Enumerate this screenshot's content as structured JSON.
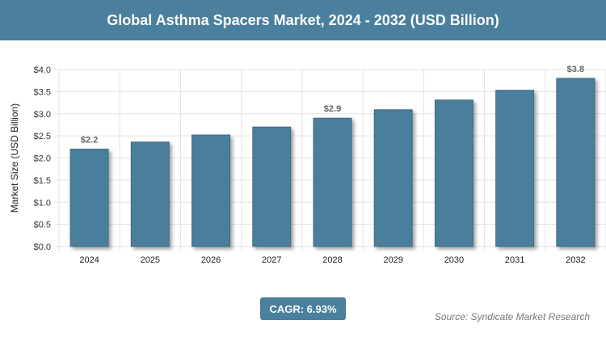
{
  "header": {
    "title": "Global Asthma Spacers Market, 2024 - 2032 (USD Billion)"
  },
  "footer": {
    "cagr": "CAGR: 6.93%",
    "source": "Source: Syndicate Market Research"
  },
  "chart_data": {
    "type": "bar",
    "title": "Global Asthma Spacers Market, 2024 - 2032 (USD Billion)",
    "ylabel": "Market Size (USD Billion)",
    "xlabel": "",
    "categories": [
      "2024",
      "2025",
      "2026",
      "2027",
      "2028",
      "2029",
      "2030",
      "2031",
      "2032"
    ],
    "values": [
      2.2,
      2.36,
      2.52,
      2.7,
      2.9,
      3.09,
      3.31,
      3.53,
      3.8
    ],
    "data_labels": {
      "0": "$2.2",
      "4": "$2.9",
      "8": "$3.8"
    },
    "ylim": [
      0,
      4
    ],
    "yticks": [
      "$0.0",
      "$0.5",
      "$1.0",
      "$1.5",
      "$2.0",
      "$2.5",
      "$3.0",
      "$3.5",
      "$4.0"
    ],
    "grid": true,
    "bar_color": "#4a7f9d"
  }
}
